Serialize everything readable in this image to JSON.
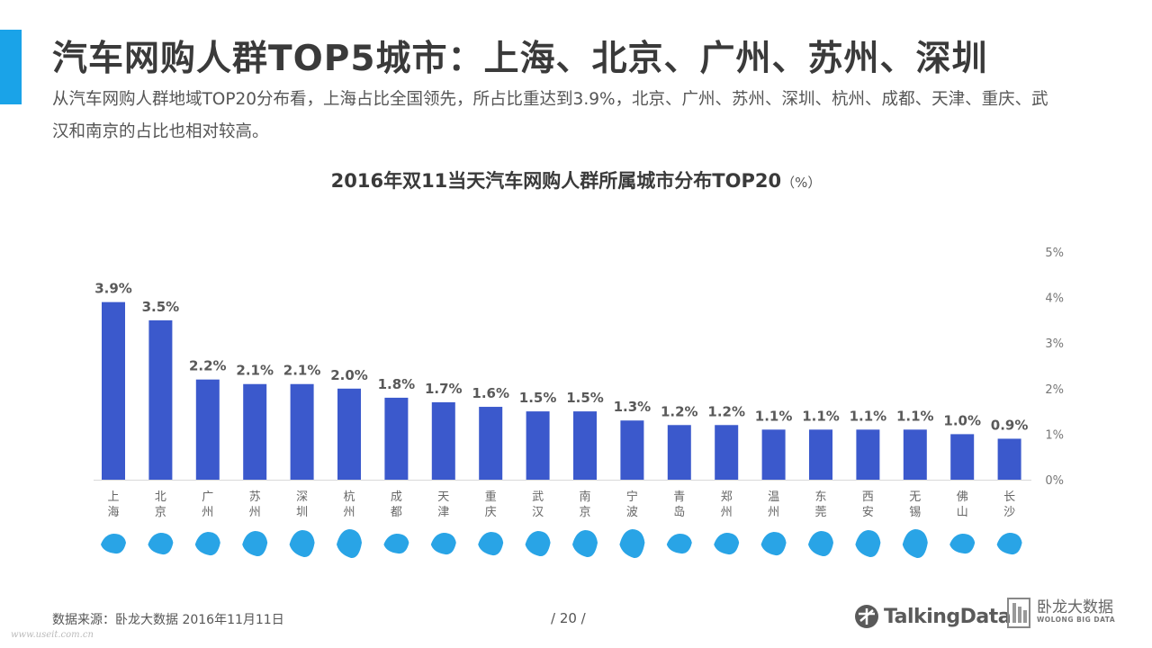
{
  "header": {
    "title": "汽车网购人群TOP5城市：上海、北京、广州、苏州、深圳",
    "subtitle": "从汽车网购人群地域TOP20分布看，上海占比全国领先，所占比重达到3.9%，北京、广州、苏州、深圳、杭州、成都、天津、重庆、武汉和南京的占比也相对较高。"
  },
  "chart_title": "2016年双11当天汽车网购人群所属城市分布TOP20",
  "chart_unit": "（%）",
  "colors": {
    "accent": "#1aa3e8",
    "bar": "#3b59cc",
    "map": "#29a4e6"
  },
  "chart_data": {
    "type": "bar",
    "title": "2016年双11当天汽车网购人群所属城市分布TOP20（%）",
    "categories": [
      "上海",
      "北京",
      "广州",
      "苏州",
      "深圳",
      "杭州",
      "成都",
      "天津",
      "重庆",
      "武汉",
      "南京",
      "宁波",
      "青岛",
      "郑州",
      "温州",
      "东莞",
      "西安",
      "无锡",
      "佛山",
      "长沙"
    ],
    "values": [
      3.9,
      3.5,
      2.2,
      2.1,
      2.1,
      2.0,
      1.8,
      1.7,
      1.6,
      1.5,
      1.5,
      1.3,
      1.2,
      1.2,
      1.1,
      1.1,
      1.1,
      1.1,
      1.0,
      0.9
    ],
    "value_labels": [
      "3.9%",
      "3.5%",
      "2.2%",
      "2.1%",
      "2.1%",
      "2.0%",
      "1.8%",
      "1.7%",
      "1.6%",
      "1.5%",
      "1.5%",
      "1.3%",
      "1.2%",
      "1.2%",
      "1.1%",
      "1.1%",
      "1.1%",
      "1.1%",
      "1.0%",
      "0.9%"
    ],
    "ylim": [
      0,
      5
    ],
    "yticks": [
      "0%",
      "1%",
      "2%",
      "3%",
      "4%",
      "5%"
    ],
    "y_axis_side": "right",
    "grid": false,
    "legend": "none"
  },
  "footer": {
    "source": "数据来源：卧龙大数据 2016年11月11日",
    "page": "/ 20 /",
    "watermark": "www.useit.com.cn"
  },
  "logos": {
    "talkingdata": "TalkingData",
    "wolong_cn": "卧龙大数据",
    "wolong_en": "WOLONG BIG DATA"
  }
}
